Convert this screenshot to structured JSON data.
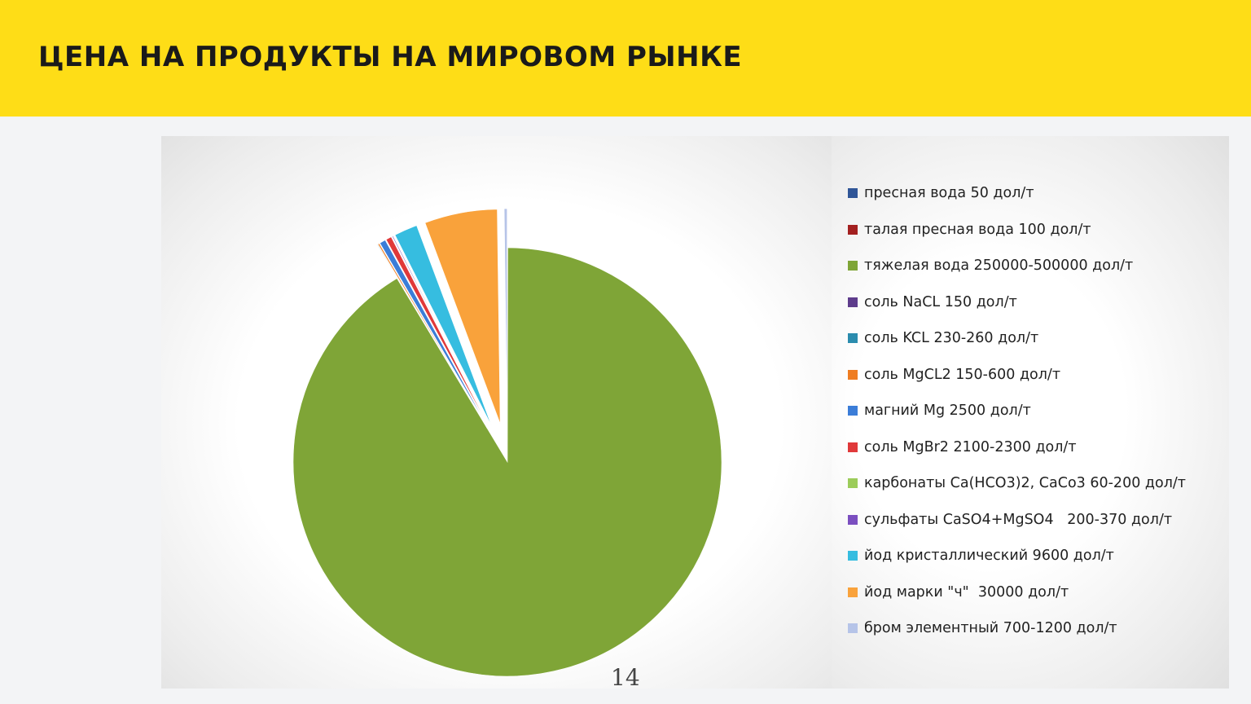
{
  "header": {
    "title": "ЦЕНА НА ПРОДУКТЫ НА МИРОВОМ РЫНКЕ",
    "background": "#fedd17"
  },
  "page_number": "14",
  "chart_data": {
    "type": "pie",
    "exploded": true,
    "legend_placement": "right",
    "categories": [
      "пресная вода 50 дол/т",
      "талая пресная вода 100 дол/т",
      "тяжелая вода 250000-500000 дол/т",
      "соль NaCL 150 дол/т",
      "соль KCL 230-260 дол/т",
      "соль MgCL2 150-600 дол/т",
      "магний Mg 2500 дол/т",
      "соль MgBr2 2100-2300 дол/т",
      "карбонаты Ca(HCO3)2, CaCo3 60-200 дол/т",
      "сульфаты CaSO4+MgSO4   200-370 дол/т",
      "йод кристаллический 9600 дол/т",
      "йод марки \"ч\"  30000 дол/т",
      "бром элементный 700-1200 дол/т"
    ],
    "values": [
      50,
      100,
      500000,
      150,
      260,
      600,
      2500,
      2300,
      200,
      370,
      9600,
      30000,
      1200
    ],
    "colors": [
      "#2f5597",
      "#a32020",
      "#7fa537",
      "#5e3c8c",
      "#2b8cae",
      "#ef7d22",
      "#3b7dd8",
      "#e0393a",
      "#9ccc5a",
      "#7b4fc0",
      "#36bde0",
      "#f9a23b",
      "#b6c4e8"
    ]
  }
}
